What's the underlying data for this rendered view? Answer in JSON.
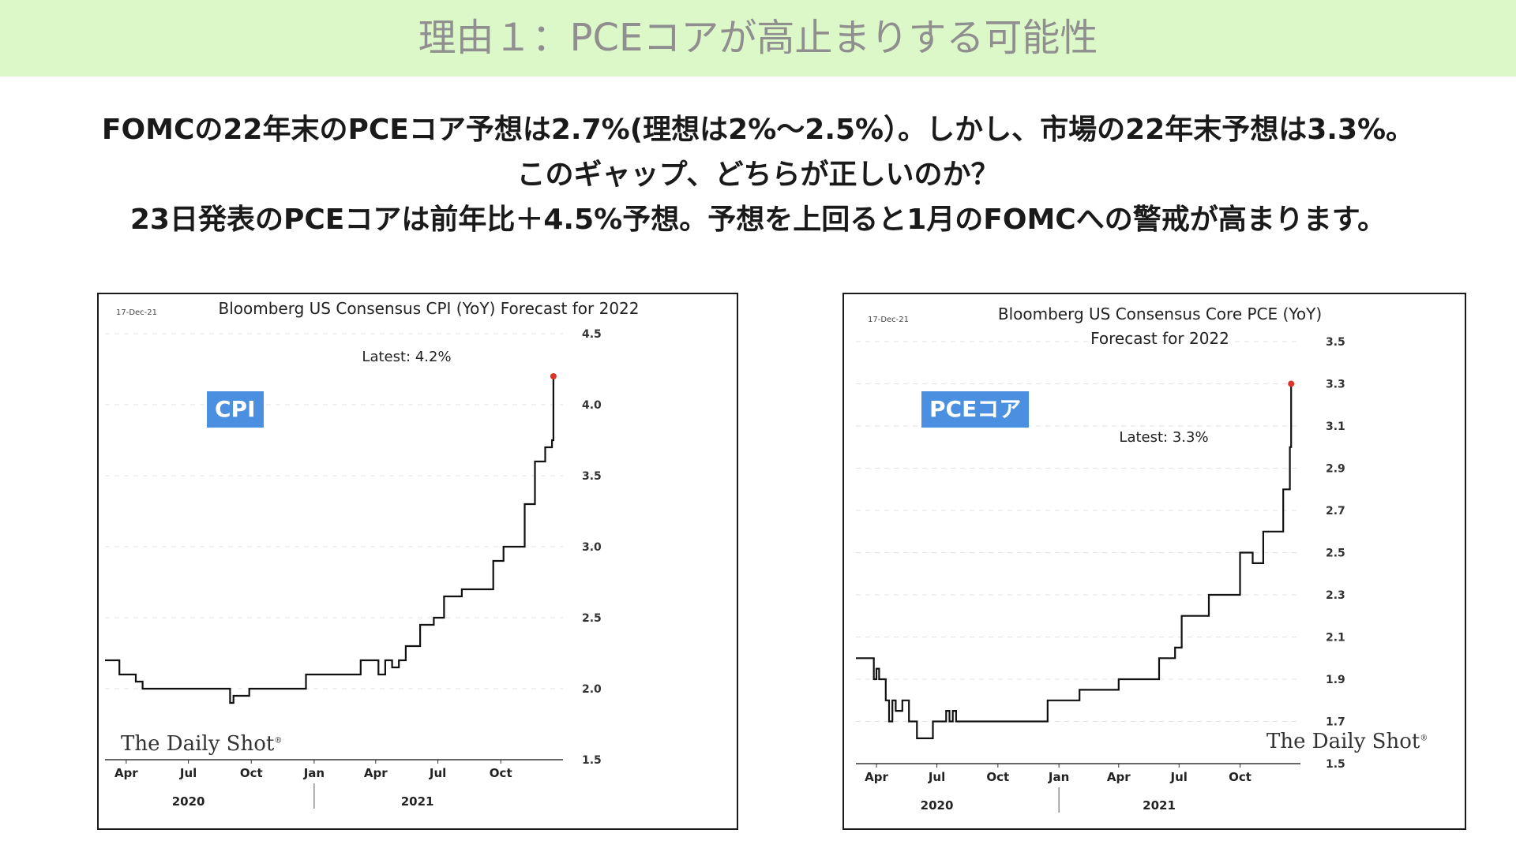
{
  "page": {
    "title": "理由１：PCEコアが高止まりする可能性",
    "lines": [
      "FOMCの22年末のPCEコア予想は2.7%(理想は2%〜2.5%）。しかし、市場の22年末予想は3.3%。",
      "このギャップ、どちらが正しいのか？",
      "23日発表のPCEコアは前年比＋4.5%予想。予想を上回ると1月のFOMCへの警戒が高まります。"
    ],
    "watermark": "The Daily Shot",
    "colors": {
      "banner": "#dcf7c8",
      "tag": "#4a8fe0",
      "latest_marker": "#d9362b",
      "line": "#111111"
    }
  },
  "chart_data": [
    {
      "type": "line",
      "date": "17-Dec-21",
      "title": "Bloomberg US Consensus CPI (YoY) Forecast for 2022",
      "annotation": "Latest:  4.2%",
      "tag": "CPI",
      "ylim": [
        1.5,
        4.5
      ],
      "yticks": [
        1.5,
        2.0,
        2.5,
        3.0,
        3.5,
        4.0,
        4.5
      ],
      "ytick_labels": [
        "1.5",
        "2.0",
        "2.5",
        "3.0",
        "3.5",
        "4.0",
        "4.5"
      ],
      "xlim": [
        "2020-03-01",
        "2021-12-31"
      ],
      "x_ticks": [
        {
          "date": "2020-04-01",
          "label": "Apr"
        },
        {
          "date": "2020-07-01",
          "label": "Jul"
        },
        {
          "date": "2020-10-01",
          "label": "Oct"
        },
        {
          "date": "2021-01-01",
          "label": "Jan"
        },
        {
          "date": "2021-04-01",
          "label": "Apr"
        },
        {
          "date": "2021-07-01",
          "label": "Jul"
        },
        {
          "date": "2021-10-01",
          "label": "Oct"
        }
      ],
      "year_labels": [
        {
          "date": "2020-07-01",
          "label": "2020"
        },
        {
          "date": "2021-06-01",
          "label": "2021"
        }
      ],
      "year_divider": "2021-01-01",
      "series": [
        {
          "x": [
            "2020-03-01",
            "2020-03-22",
            "2020-04-01",
            "2020-04-15",
            "2020-04-25",
            "2020-05-20",
            "2020-06-30",
            "2020-08-31",
            "2020-09-05",
            "2020-09-10",
            "2020-09-28",
            "2020-12-20",
            "2021-03-10",
            "2021-04-05",
            "2021-04-15",
            "2021-04-25",
            "2021-05-05",
            "2021-05-15",
            "2021-06-05",
            "2021-06-25",
            "2021-07-01",
            "2021-07-10",
            "2021-08-05",
            "2021-08-20",
            "2021-09-20",
            "2021-10-05",
            "2021-10-20",
            "2021-11-05",
            "2021-11-15",
            "2021-11-20",
            "2021-12-05",
            "2021-12-15",
            "2021-12-17"
          ],
          "y": [
            2.2,
            2.1,
            2.1,
            2.05,
            2.0,
            2.0,
            2.0,
            1.9,
            1.95,
            1.95,
            2.0,
            2.1,
            2.2,
            2.1,
            2.2,
            2.15,
            2.2,
            2.3,
            2.45,
            2.5,
            2.5,
            2.65,
            2.7,
            2.7,
            2.9,
            3.0,
            3.0,
            3.3,
            3.3,
            3.6,
            3.7,
            3.75,
            4.2
          ]
        }
      ]
    },
    {
      "type": "line",
      "date": "17-Dec-21",
      "title": "Bloomberg US Consensus Core PCE (YoY)",
      "subtitle": "Forecast for 2022",
      "annotation": "Latest:  3.3%",
      "tag": "PCEコア",
      "ylim": [
        1.5,
        3.5
      ],
      "yticks": [
        1.5,
        1.7,
        1.9,
        2.1,
        2.3,
        2.5,
        2.7,
        2.9,
        3.1,
        3.3,
        3.5
      ],
      "ytick_labels": [
        "1.5",
        "1.7",
        "1.9",
        "2.1",
        "2.3",
        "2.5",
        "2.7",
        "2.9",
        "3.1",
        "3.3",
        "3.5"
      ],
      "xlim": [
        "2020-03-01",
        "2021-12-31"
      ],
      "x_ticks": [
        {
          "date": "2020-04-01",
          "label": "Apr"
        },
        {
          "date": "2020-07-01",
          "label": "Jul"
        },
        {
          "date": "2020-10-01",
          "label": "Oct"
        },
        {
          "date": "2021-01-01",
          "label": "Jan"
        },
        {
          "date": "2021-04-01",
          "label": "Apr"
        },
        {
          "date": "2021-07-01",
          "label": "Jul"
        },
        {
          "date": "2021-10-01",
          "label": "Oct"
        }
      ],
      "year_labels": [
        {
          "date": "2020-07-01",
          "label": "2020"
        },
        {
          "date": "2021-06-01",
          "label": "2021"
        }
      ],
      "year_divider": "2021-01-01",
      "series": [
        {
          "x": [
            "2020-03-01",
            "2020-03-28",
            "2020-04-01",
            "2020-04-05",
            "2020-04-15",
            "2020-04-20",
            "2020-04-25",
            "2020-04-30",
            "2020-05-10",
            "2020-05-20",
            "2020-06-01",
            "2020-06-25",
            "2020-07-15",
            "2020-07-20",
            "2020-07-25",
            "2020-07-30",
            "2020-09-05",
            "2020-09-15",
            "2020-10-05",
            "2020-10-10",
            "2020-10-20",
            "2020-11-05",
            "2020-12-05",
            "2020-12-15",
            "2021-01-15",
            "2021-02-01",
            "2021-04-01",
            "2021-06-01",
            "2021-06-15",
            "2021-06-25",
            "2021-07-05",
            "2021-08-01",
            "2021-08-15",
            "2021-09-01",
            "2021-10-01",
            "2021-10-20",
            "2021-11-05",
            "2021-12-05",
            "2021-12-15",
            "2021-12-17"
          ],
          "y": [
            2.0,
            1.9,
            1.95,
            1.9,
            1.8,
            1.7,
            1.8,
            1.75,
            1.8,
            1.7,
            1.62,
            1.7,
            1.75,
            1.7,
            1.75,
            1.7,
            1.7,
            1.7,
            1.7,
            1.7,
            1.7,
            1.7,
            1.7,
            1.8,
            1.8,
            1.85,
            1.9,
            2.0,
            2.0,
            2.05,
            2.2,
            2.2,
            2.3,
            2.3,
            2.5,
            2.45,
            2.6,
            2.8,
            3.0,
            3.3
          ]
        }
      ]
    }
  ]
}
